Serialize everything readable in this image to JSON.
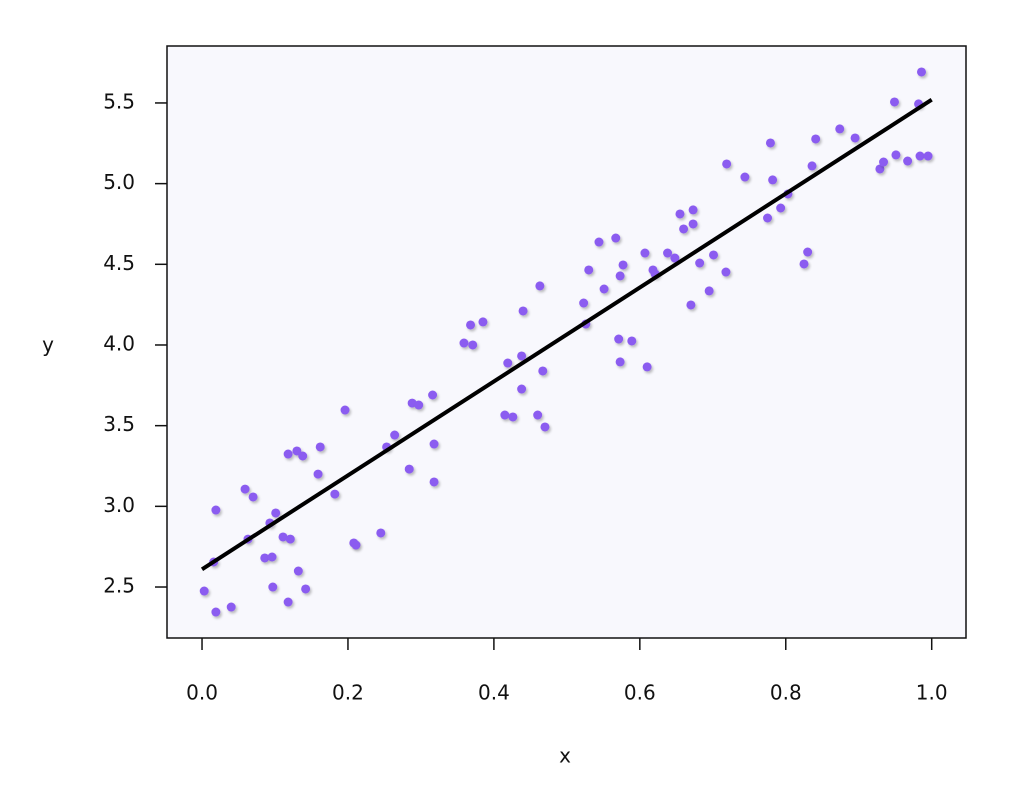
{
  "chart_data": {
    "type": "scatter",
    "x_label": "x",
    "y_label": "y",
    "xlim": [
      -0.048,
      1.047
    ],
    "ylim": [
      2.184,
      5.853
    ],
    "xticks": [
      {
        "value": 0,
        "label": "0.0"
      },
      0.2,
      0.4,
      0.6,
      0.8,
      {
        "value": 1,
        "label": "1.0"
      }
    ],
    "yticks": [
      2.5,
      {
        "value": 3,
        "label": "3.0"
      },
      3.5,
      {
        "value": 4,
        "label": "4.0"
      },
      4.5,
      {
        "value": 5,
        "label": "5.0"
      },
      5.5
    ],
    "points": {
      "color": "#8b5cf0",
      "x": [
        0.003,
        0.019,
        0.019,
        0.016,
        0.04,
        0.059,
        0.07,
        0.063,
        0.086,
        0.096,
        0.093,
        0.101,
        0.097,
        0.111,
        0.121,
        0.118,
        0.118,
        0.13,
        0.138,
        0.132,
        0.142,
        0.162,
        0.159,
        0.182,
        0.196,
        0.208,
        0.211,
        0.245,
        0.253,
        0.264,
        0.284,
        0.288,
        0.297,
        0.316,
        0.318,
        0.318,
        0.359,
        0.368,
        0.371,
        0.385,
        0.415,
        0.419,
        0.426,
        0.438,
        0.438,
        0.44,
        0.46,
        0.463,
        0.467,
        0.47,
        0.523,
        0.53,
        0.526,
        0.544,
        0.551,
        0.567,
        0.571,
        0.573,
        0.577,
        0.573,
        0.589,
        0.607,
        0.61,
        0.618,
        0.621,
        0.638,
        0.648,
        0.655,
        0.66,
        0.673,
        0.673,
        0.67,
        0.682,
        0.695,
        0.701,
        0.718,
        0.719,
        0.744,
        0.775,
        0.779,
        0.782,
        0.793,
        0.803,
        0.825,
        0.83,
        0.836,
        0.841,
        0.874,
        0.895,
        0.929,
        0.934,
        0.949,
        0.951,
        0.967,
        0.982,
        0.984,
        0.986,
        0.995
      ],
      "y": [
        2.475,
        2.345,
        2.977,
        2.655,
        2.376,
        3.107,
        3.058,
        2.797,
        2.68,
        2.686,
        2.897,
        2.959,
        2.5,
        2.81,
        2.797,
        2.407,
        3.324,
        3.343,
        3.312,
        2.599,
        2.488,
        3.368,
        3.2,
        3.076,
        3.597,
        2.773,
        2.76,
        2.835,
        3.368,
        3.442,
        3.231,
        3.64,
        3.628,
        3.69,
        3.386,
        3.151,
        4.012,
        4.124,
        4.0,
        4.143,
        3.566,
        3.888,
        3.554,
        3.932,
        3.727,
        4.211,
        3.566,
        4.366,
        3.839,
        3.492,
        4.26,
        4.465,
        4.13,
        4.638,
        4.347,
        4.663,
        4.037,
        4.428,
        4.496,
        3.895,
        4.025,
        4.57,
        3.864,
        4.465,
        4.44,
        4.57,
        4.539,
        4.812,
        4.719,
        4.837,
        4.75,
        4.248,
        4.508,
        4.335,
        4.558,
        4.452,
        5.122,
        5.041,
        4.787,
        5.252,
        5.023,
        4.849,
        4.936,
        4.502,
        4.576,
        5.11,
        5.277,
        5.339,
        5.283,
        5.091,
        5.134,
        5.506,
        5.178,
        5.14,
        5.494,
        5.171,
        5.692,
        5.171
      ]
    },
    "fit_line": {
      "color": "#000000",
      "x": [
        0,
        1
      ],
      "y": [
        2.61,
        5.52
      ]
    }
  }
}
